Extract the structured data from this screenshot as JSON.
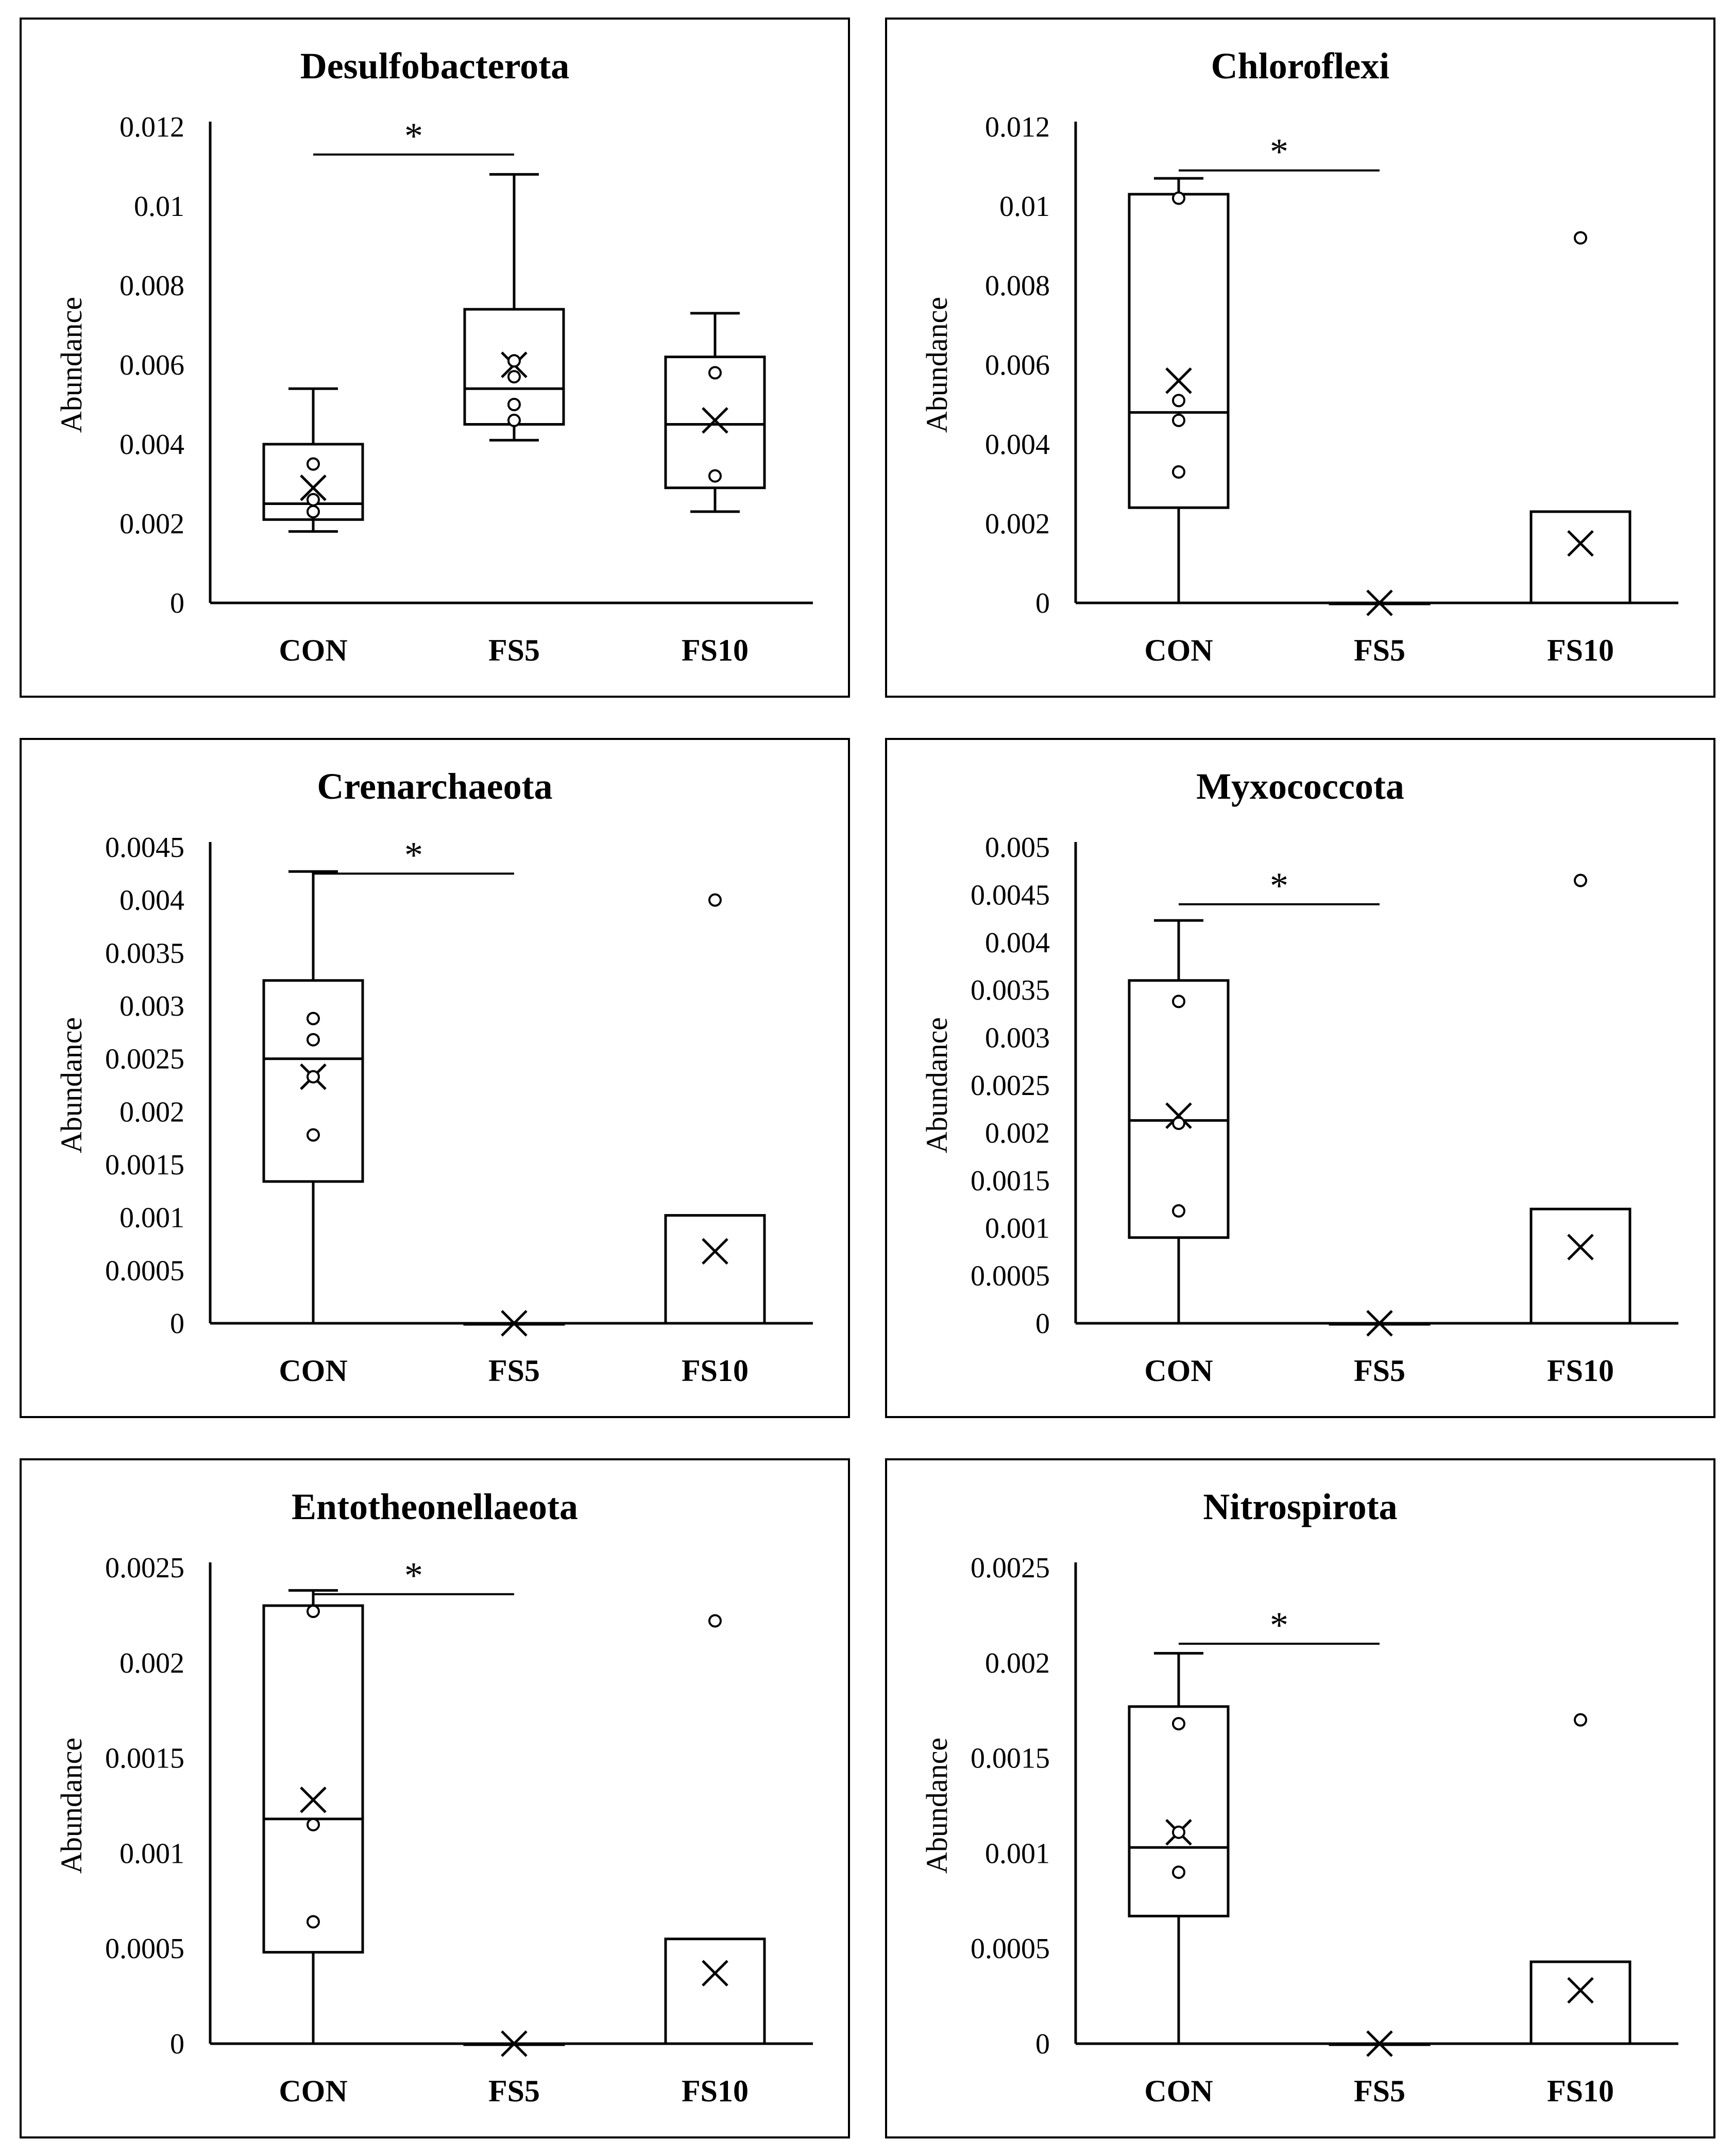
{
  "chart_data": [
    {
      "type": "box",
      "title": "Desulfobacterota",
      "xlabel": "",
      "ylabel": "Abundance",
      "ylim": [
        0,
        0.012
      ],
      "yticks": [
        "0",
        "0.002",
        "0.004",
        "0.006",
        "0.008",
        "0.01",
        "0.012"
      ],
      "categories": [
        "CON",
        "FS5",
        "FS10"
      ],
      "boxes": [
        {
          "name": "CON",
          "min": 0.0018,
          "q1": 0.0021,
          "median": 0.0025,
          "q3": 0.004,
          "max": 0.0054,
          "mean": 0.0029,
          "points": [
            0.0035,
            0.0026,
            0.0023
          ]
        },
        {
          "name": "FS5",
          "min": 0.0041,
          "q1": 0.0045,
          "median": 0.0054,
          "q3": 0.0074,
          "max": 0.0108,
          "mean": 0.006,
          "points": [
            0.0061,
            0.0057,
            0.005,
            0.0046
          ]
        },
        {
          "name": "FS10",
          "min": 0.0023,
          "q1": 0.0029,
          "median": 0.0045,
          "q3": 0.0062,
          "max": 0.0073,
          "mean": 0.0046,
          "points": [
            0.0058,
            0.0032
          ]
        }
      ],
      "significance": {
        "from": "CON",
        "to": "FS5",
        "level": 0.0113,
        "label": "*"
      }
    },
    {
      "type": "box",
      "title": "Chloroflexi",
      "xlabel": "",
      "ylabel": "Abundance",
      "ylim": [
        0,
        0.012
      ],
      "yticks": [
        "0",
        "0.002",
        "0.004",
        "0.006",
        "0.008",
        "0.01",
        "0.012"
      ],
      "categories": [
        "CON",
        "FS5",
        "FS10"
      ],
      "boxes": [
        {
          "name": "CON",
          "min": 0,
          "q1": 0.0024,
          "median": 0.0048,
          "q3": 0.0103,
          "max": 0.0107,
          "mean": 0.0056,
          "points": [
            0.0102,
            0.0051,
            0.0046,
            0.0033
          ]
        },
        {
          "name": "FS5",
          "min": 0,
          "q1": 0,
          "median": 0,
          "q3": 0,
          "max": 0,
          "mean": 0,
          "points": []
        },
        {
          "name": "FS10",
          "min": 0,
          "q1": 0,
          "median": 0,
          "q3": 0.0023,
          "max": 0.0023,
          "mean": 0.0015,
          "points": [
            0.0092
          ]
        }
      ],
      "significance": {
        "from": "CON",
        "to": "FS5",
        "level": 0.0109,
        "label": "*"
      }
    },
    {
      "type": "box",
      "title": "Crenarchaeota",
      "xlabel": "",
      "ylabel": "Abundance",
      "ylim": [
        0,
        0.0045
      ],
      "yticks": [
        "0",
        "0.0005",
        "0.001",
        "0.0015",
        "0.002",
        "0.0025",
        "0.003",
        "0.0035",
        "0.004",
        "0.0045"
      ],
      "categories": [
        "CON",
        "FS5",
        "FS10"
      ],
      "boxes": [
        {
          "name": "CON",
          "min": 0,
          "q1": 0.00134,
          "median": 0.0025,
          "q3": 0.00324,
          "max": 0.00427,
          "mean": 0.00233,
          "points": [
            0.00288,
            0.00268,
            0.00233,
            0.00178
          ]
        },
        {
          "name": "FS5",
          "min": 0,
          "q1": 0,
          "median": 0,
          "q3": 0,
          "max": 0,
          "mean": 0,
          "points": []
        },
        {
          "name": "FS10",
          "min": 0,
          "q1": 0,
          "median": 0,
          "q3": 0.00102,
          "max": 0.00102,
          "mean": 0.00068,
          "points": [
            0.004
          ]
        }
      ],
      "significance": {
        "from": "CON",
        "to": "FS5",
        "level": 0.00425,
        "label": "*"
      }
    },
    {
      "type": "box",
      "title": "Myxococcota",
      "xlabel": "",
      "ylabel": "Abundance",
      "ylim": [
        0,
        0.005
      ],
      "yticks": [
        "0",
        "0.0005",
        "0.001",
        "0.0015",
        "0.002",
        "0.0025",
        "0.003",
        "0.0035",
        "0.004",
        "0.0045",
        "0.005"
      ],
      "categories": [
        "CON",
        "FS5",
        "FS10"
      ],
      "boxes": [
        {
          "name": "CON",
          "min": 0,
          "q1": 0.0009,
          "median": 0.00213,
          "q3": 0.0036,
          "max": 0.00423,
          "mean": 0.00218,
          "points": [
            0.00338,
            0.0021,
            0.00118
          ]
        },
        {
          "name": "FS5",
          "min": 0,
          "q1": 0,
          "median": 0,
          "q3": 0,
          "max": 0,
          "mean": 0,
          "points": []
        },
        {
          "name": "FS10",
          "min": 0,
          "q1": 0,
          "median": 0,
          "q3": 0.0012,
          "max": 0.0012,
          "mean": 0.0008,
          "points": [
            0.00465
          ]
        }
      ],
      "significance": {
        "from": "CON",
        "to": "FS5",
        "level": 0.0044,
        "label": "*"
      }
    },
    {
      "type": "box",
      "title": "Entotheonellaeota",
      "xlabel": "",
      "ylabel": "Abundance",
      "ylim": [
        0,
        0.0025
      ],
      "yticks": [
        "0",
        "0.0005",
        "0.001",
        "0.0015",
        "0.002",
        "0.0025"
      ],
      "categories": [
        "CON",
        "FS5",
        "FS10"
      ],
      "boxes": [
        {
          "name": "CON",
          "min": 0,
          "q1": 0.00048,
          "median": 0.00118,
          "q3": 0.0023,
          "max": 0.00238,
          "mean": 0.00128,
          "points": [
            0.00227,
            0.00115,
            0.00064
          ]
        },
        {
          "name": "FS5",
          "min": 0,
          "q1": 0,
          "median": 0,
          "q3": 0,
          "max": 0,
          "mean": 0,
          "points": []
        },
        {
          "name": "FS10",
          "min": 0,
          "q1": 0,
          "median": 0,
          "q3": 0.00055,
          "max": 0.00055,
          "mean": 0.00037,
          "points": [
            0.00222
          ]
        }
      ],
      "significance": {
        "from": "CON",
        "to": "FS5",
        "level": 0.00236,
        "label": "*"
      }
    },
    {
      "type": "box",
      "title": "Nitrospirota",
      "xlabel": "",
      "ylabel": "Abundance",
      "ylim": [
        0,
        0.0025
      ],
      "yticks": [
        "0",
        "0.0005",
        "0.001",
        "0.0015",
        "0.002",
        "0.0025"
      ],
      "categories": [
        "CON",
        "FS5",
        "FS10"
      ],
      "boxes": [
        {
          "name": "CON",
          "min": 0,
          "q1": 0.00067,
          "median": 0.00103,
          "q3": 0.00177,
          "max": 0.00205,
          "mean": 0.00111,
          "points": [
            0.00168,
            0.00111,
            0.0009
          ]
        },
        {
          "name": "FS5",
          "min": 0,
          "q1": 0,
          "median": 0,
          "q3": 0,
          "max": 0,
          "mean": 0,
          "points": []
        },
        {
          "name": "FS10",
          "min": 0,
          "q1": 0,
          "median": 0,
          "q3": 0.00043,
          "max": 0.00043,
          "mean": 0.00028,
          "points": [
            0.0017
          ]
        }
      ],
      "significance": {
        "from": "CON",
        "to": "FS5",
        "level": 0.0021,
        "label": "*"
      }
    }
  ]
}
